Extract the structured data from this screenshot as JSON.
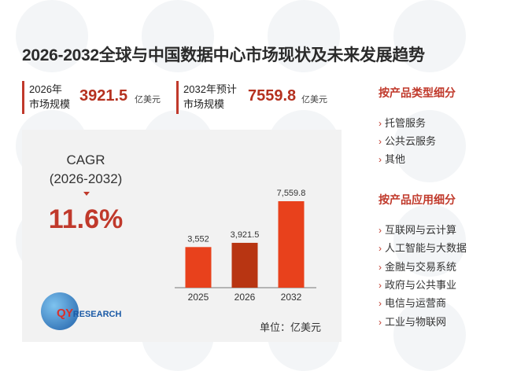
{
  "title": "2026-2032全球与中国数据中心市场现状及未来发展趋势",
  "stats": [
    {
      "label_line1": "2026年",
      "label_line2": "市场规模",
      "value": "3921.5",
      "unit": "亿美元"
    },
    {
      "label_line1": "2032年预计",
      "label_line2": "市场规模",
      "value": "7559.8",
      "unit": "亿美元"
    }
  ],
  "cagr": {
    "label": "CAGR",
    "period": "(2026-2032)",
    "value": "11.6%"
  },
  "logo": {
    "letters": "QY",
    "rest": "RESEARCH"
  },
  "chart_data": {
    "type": "bar",
    "categories": [
      "2025",
      "2026",
      "2032"
    ],
    "values": [
      3552,
      3921.5,
      7559.8
    ],
    "value_labels": [
      "3,552",
      "3,921.5",
      "7,559.8"
    ],
    "unit_note": "单位：亿美元",
    "colors": [
      "#e8411c",
      "#b83512",
      "#e8411c"
    ]
  },
  "sections": [
    {
      "title": "按产品类型细分",
      "items": [
        "托管服务",
        "公共云服务",
        "其他"
      ]
    },
    {
      "title": "按产品应用细分",
      "items": [
        "互联网与云计算",
        "人工智能与大数据",
        "金融与交易系统",
        "政府与公共事业",
        "电信与运营商",
        "工业与物联网"
      ]
    }
  ]
}
